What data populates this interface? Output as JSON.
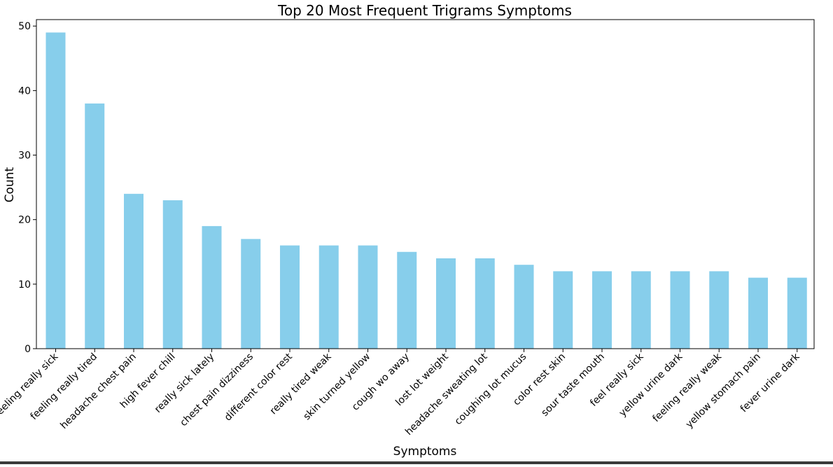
{
  "chart_data": {
    "type": "bar",
    "title": "Top 20 Most Frequent Trigrams Symptoms",
    "xlabel": "Symptoms",
    "ylabel": "Count",
    "ylim": [
      0,
      51
    ],
    "yticks": [
      0,
      10,
      20,
      30,
      40,
      50
    ],
    "grid": false,
    "bar_color": "#87ceeb",
    "categories": [
      "feeling really sick",
      "feeling really tired",
      "headache chest pain",
      "high fever chill",
      "really sick lately",
      "chest pain dizziness",
      "different color rest",
      "really tired weak",
      "skin turned yellow",
      "cough wo away",
      "lost lot weight",
      "headache sweating lot",
      "coughing lot mucus",
      "color rest skin",
      "sour taste mouth",
      "feel really sick",
      "yellow urine dark",
      "feeling really weak",
      "yellow stomach pain",
      "fever urine dark"
    ],
    "values": [
      49,
      38,
      24,
      23,
      19,
      17,
      16,
      16,
      16,
      15,
      14,
      14,
      13,
      12,
      12,
      12,
      12,
      12,
      11,
      11
    ]
  }
}
